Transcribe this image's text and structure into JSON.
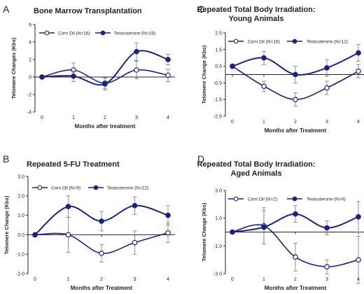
{
  "chart_data": [
    {
      "type": "line",
      "panel_letter": "A",
      "title": "Bone Marrow Transplantation",
      "xlabel": "Months after treatment",
      "ylabel": "Telomere Changes (Kbs)",
      "x": [
        0,
        1,
        2,
        3,
        4
      ],
      "xticks": [
        "0",
        "1",
        "2",
        "3",
        "4"
      ],
      "ylim": [
        -4,
        6
      ],
      "yticks": [
        -4,
        -2,
        0,
        2,
        4,
        6
      ],
      "ytick_labels": [
        "-4",
        "-2",
        "0",
        "2",
        "4",
        "6"
      ],
      "legend": "top-left",
      "series": [
        {
          "name": "Corn Oil (N=16)",
          "marker": "open",
          "values": [
            0,
            0.8,
            -0.7,
            0.8,
            0.2
          ],
          "errors": [
            0.1,
            0.8,
            0.6,
            1.0,
            0.7
          ]
        },
        {
          "name": "Testosterone (N=18)",
          "marker": "filled",
          "values": [
            0,
            0.1,
            -0.8,
            2.9,
            2.0
          ],
          "errors": [
            0.1,
            0.6,
            0.7,
            1.0,
            0.6
          ]
        }
      ]
    },
    {
      "type": "line",
      "panel_letter": "C",
      "title": "Repeated Total Body Irradiation:",
      "title2": "Young Animals",
      "xlabel": "Months after Treatment",
      "ylabel": "Telomere Change (Kbs)",
      "x": [
        0,
        1,
        2,
        3,
        4
      ],
      "xticks": [
        "0",
        "1",
        "2",
        "3",
        "4"
      ],
      "ylim": [
        -2.5,
        2.5
      ],
      "yticks": [
        -2.5,
        -1.5,
        -0.5,
        0.5,
        1.5,
        2.5
      ],
      "ytick_labels": [
        "-2.5",
        "-1.5",
        "-0.5",
        "0.5",
        "1.5",
        "2.5"
      ],
      "legend": "top",
      "series": [
        {
          "name": "Corn Oil (N=16)",
          "marker": "open",
          "values": [
            0.5,
            -0.7,
            -1.5,
            -0.8,
            0.2
          ],
          "errors": [
            0.1,
            0.3,
            0.4,
            0.4,
            0.4
          ]
        },
        {
          "name": "Testosterone (N=12)",
          "marker": "filled",
          "values": [
            0.5,
            1.0,
            0.0,
            0.4,
            1.3
          ],
          "errors": [
            0.1,
            0.4,
            0.5,
            0.5,
            0.5
          ]
        }
      ]
    },
    {
      "type": "line",
      "panel_letter": "B",
      "title": "Repeated 5-FU Treatment",
      "xlabel": "Months after Treatment",
      "ylabel": "Telomere Change (Kbs)",
      "x": [
        0,
        1,
        2,
        3,
        4
      ],
      "xticks": [
        "0",
        "1",
        "2",
        "3",
        "4"
      ],
      "ylim": [
        -2,
        3
      ],
      "yticks": [
        -2,
        -1,
        0,
        1,
        2,
        3
      ],
      "ytick_labels": [
        "-2.0",
        "-1.0",
        "0.0",
        "1.0",
        "2.0",
        "3.0"
      ],
      "legend": "top",
      "series": [
        {
          "name": "Corn Oil (N=9)",
          "marker": "open",
          "values": [
            0,
            0,
            -0.95,
            -0.4,
            0.1
          ],
          "errors": [
            0.05,
            0.9,
            0.45,
            0.6,
            0.5
          ]
        },
        {
          "name": "Testosterone (N=12)",
          "marker": "filled",
          "values": [
            0,
            1.45,
            0.7,
            1.5,
            1.0
          ],
          "errors": [
            0.05,
            0.55,
            0.5,
            0.45,
            0.5
          ]
        }
      ]
    },
    {
      "type": "line",
      "panel_letter": "D",
      "title": "Repeated Total Body Irradiation:",
      "title2": "Aged Animals",
      "xlabel": "Months after Treatment",
      "ylabel": "Telomere Change (Kbs)",
      "x": [
        0,
        1,
        2,
        3,
        4
      ],
      "xticks": [
        "0",
        "1",
        "2",
        "3",
        "4"
      ],
      "ylim": [
        -3,
        3
      ],
      "yticks": [
        -3,
        -1,
        1,
        3
      ],
      "ytick_labels": [
        "-3.0",
        "-1.0",
        "1.0",
        "3.0"
      ],
      "legend": "top",
      "series": [
        {
          "name": "Corn Oil (N=2)",
          "marker": "open",
          "values": [
            0,
            0.45,
            -1.8,
            -2.5,
            -2.0
          ],
          "errors": [
            0.05,
            1.3,
            1.0,
            0.5,
            1.7
          ]
        },
        {
          "name": "Testosterone (N=4)",
          "marker": "filled",
          "values": [
            0,
            0.35,
            1.3,
            0.3,
            1.1
          ],
          "errors": [
            0.05,
            1.2,
            0.6,
            0.5,
            1.1
          ]
        }
      ]
    }
  ]
}
